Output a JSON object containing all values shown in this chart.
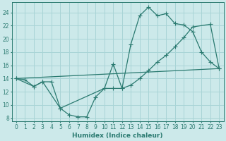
{
  "xlabel": "Humidex (Indice chaleur)",
  "xlim": [
    -0.5,
    23.5
  ],
  "ylim": [
    7.5,
    25.5
  ],
  "yticks": [
    8,
    10,
    12,
    14,
    16,
    18,
    20,
    22,
    24
  ],
  "xticks": [
    0,
    1,
    2,
    3,
    4,
    5,
    6,
    7,
    8,
    9,
    10,
    11,
    12,
    13,
    14,
    15,
    16,
    17,
    18,
    19,
    20,
    21,
    22,
    23
  ],
  "bg_color": "#cce9ea",
  "grid_color": "#a8d4d6",
  "line_color": "#2a7a70",
  "line1": {
    "x": [
      0,
      1,
      2,
      3,
      4,
      5,
      6,
      7,
      8,
      9,
      10,
      11,
      12,
      13,
      14,
      15,
      16,
      17,
      18,
      19,
      20,
      21,
      22,
      23
    ],
    "y": [
      14,
      13.8,
      12.8,
      13.5,
      13.5,
      9.5,
      8.5,
      8.2,
      8.2,
      11.2,
      12.5,
      16.2,
      12.5,
      19.2,
      23.5,
      24.8,
      23.5,
      23.8,
      22.3,
      22.1,
      21.1,
      18.0,
      16.5,
      15.5
    ]
  },
  "line2": {
    "x": [
      0,
      2,
      3,
      5,
      10,
      11,
      12,
      13,
      14,
      15,
      16,
      17,
      18,
      19,
      20,
      22,
      23
    ],
    "y": [
      14,
      12.8,
      13.5,
      9.5,
      12.5,
      12.5,
      12.5,
      13.0,
      14.0,
      15.2,
      16.5,
      17.5,
      18.8,
      20.2,
      21.8,
      22.2,
      15.5
    ]
  },
  "line3": {
    "x": [
      0,
      23
    ],
    "y": [
      14,
      15.5
    ]
  }
}
